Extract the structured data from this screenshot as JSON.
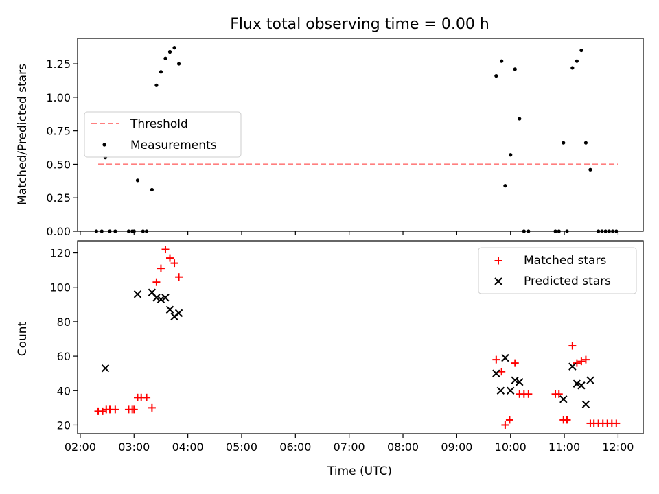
{
  "figure": {
    "title": "Flux total observing time = 0.00 h",
    "xlabel": "Time (UTC)"
  },
  "chart_data": [
    {
      "type": "scatter",
      "panel": "top",
      "title": "Flux total observing time = 0.00 h",
      "ylabel": "Matched/Predicted stars",
      "xlim": [
        "01:57",
        "12:28"
      ],
      "ylim": [
        0,
        1.44
      ],
      "yticks": [
        0.0,
        0.25,
        0.5,
        0.75,
        1.0,
        1.25
      ],
      "ytick_labels": [
        "0.00",
        "0.25",
        "0.50",
        "0.75",
        "1.00",
        "1.25"
      ],
      "grid": false,
      "legend_position": "center-left",
      "threshold": {
        "name": "Threshold",
        "y": 0.5,
        "x_start": "02:20",
        "x_end": "12:00",
        "color": "#ff7f7f",
        "style": "dashed"
      },
      "series": [
        {
          "name": "Measurements",
          "color": "#000000",
          "marker": "dot",
          "points": [
            [
              "02:18",
              0.0
            ],
            [
              "02:24",
              0.0
            ],
            [
              "02:33",
              0.0
            ],
            [
              "02:39",
              0.0
            ],
            [
              "02:28",
              0.55
            ],
            [
              "02:54",
              0.0
            ],
            [
              "02:58",
              0.0
            ],
            [
              "03:00",
              0.0
            ],
            [
              "03:04",
              0.38
            ],
            [
              "03:10",
              0.0
            ],
            [
              "03:14",
              0.0
            ],
            [
              "03:20",
              0.31
            ],
            [
              "03:25",
              1.09
            ],
            [
              "03:30",
              1.19
            ],
            [
              "03:35",
              1.29
            ],
            [
              "03:40",
              1.34
            ],
            [
              "03:45",
              1.37
            ],
            [
              "03:50",
              1.25
            ],
            [
              "09:44",
              1.16
            ],
            [
              "09:50",
              1.27
            ],
            [
              "09:54",
              0.34
            ],
            [
              "10:00",
              0.57
            ],
            [
              "10:05",
              1.21
            ],
            [
              "10:10",
              0.84
            ],
            [
              "10:15",
              0.0
            ],
            [
              "10:20",
              0.0
            ],
            [
              "10:50",
              0.0
            ],
            [
              "10:54",
              0.0
            ],
            [
              "10:59",
              0.66
            ],
            [
              "11:03",
              0.0
            ],
            [
              "11:09",
              1.22
            ],
            [
              "11:14",
              1.27
            ],
            [
              "11:19",
              1.35
            ],
            [
              "11:24",
              0.66
            ],
            [
              "11:29",
              0.46
            ],
            [
              "11:38",
              0.0
            ],
            [
              "11:42",
              0.0
            ],
            [
              "11:46",
              0.0
            ],
            [
              "11:50",
              0.0
            ],
            [
              "11:54",
              0.0
            ],
            [
              "11:58",
              0.0
            ]
          ]
        }
      ]
    },
    {
      "type": "scatter",
      "panel": "bottom",
      "xlabel": "Time (UTC)",
      "ylabel": "Count",
      "xlim": [
        "01:57",
        "12:28"
      ],
      "ylim": [
        15,
        127
      ],
      "yticks": [
        20,
        40,
        60,
        80,
        100,
        120
      ],
      "xticks": [
        "02:00",
        "03:00",
        "04:00",
        "05:00",
        "06:00",
        "07:00",
        "08:00",
        "09:00",
        "10:00",
        "11:00",
        "12:00"
      ],
      "grid": false,
      "legend_position": "top-right",
      "series": [
        {
          "name": "Matched stars",
          "color": "#ff0000",
          "marker": "plus",
          "points": [
            [
              "02:20",
              28
            ],
            [
              "02:25",
              28
            ],
            [
              "02:29",
              29
            ],
            [
              "02:33",
              29
            ],
            [
              "02:39",
              29
            ],
            [
              "02:54",
              29
            ],
            [
              "02:58",
              29
            ],
            [
              "03:00",
              29
            ],
            [
              "03:04",
              36
            ],
            [
              "03:08",
              36
            ],
            [
              "03:14",
              36
            ],
            [
              "03:20",
              30
            ],
            [
              "03:25",
              103
            ],
            [
              "03:30",
              111
            ],
            [
              "03:35",
              122
            ],
            [
              "03:40",
              117
            ],
            [
              "03:45",
              114
            ],
            [
              "03:50",
              106
            ],
            [
              "09:44",
              58
            ],
            [
              "09:50",
              51
            ],
            [
              "09:54",
              20
            ],
            [
              "09:59",
              23
            ],
            [
              "10:05",
              56
            ],
            [
              "10:10",
              38
            ],
            [
              "10:15",
              38
            ],
            [
              "10:20",
              38
            ],
            [
              "10:50",
              38
            ],
            [
              "10:54",
              38
            ],
            [
              "10:59",
              23
            ],
            [
              "11:03",
              23
            ],
            [
              "11:09",
              66
            ],
            [
              "11:14",
              56
            ],
            [
              "11:19",
              57
            ],
            [
              "11:24",
              58
            ],
            [
              "11:29",
              21
            ],
            [
              "11:33",
              21
            ],
            [
              "11:38",
              21
            ],
            [
              "11:43",
              21
            ],
            [
              "11:48",
              21
            ],
            [
              "11:53",
              21
            ],
            [
              "11:58",
              21
            ]
          ]
        },
        {
          "name": "Predicted stars",
          "color": "#000000",
          "marker": "x",
          "points": [
            [
              "02:28",
              53
            ],
            [
              "03:04",
              96
            ],
            [
              "03:20",
              97
            ],
            [
              "03:25",
              94
            ],
            [
              "03:30",
              93
            ],
            [
              "03:35",
              94
            ],
            [
              "03:40",
              87
            ],
            [
              "03:45",
              83
            ],
            [
              "03:50",
              85
            ],
            [
              "09:44",
              50
            ],
            [
              "09:49",
              40
            ],
            [
              "09:54",
              59
            ],
            [
              "10:00",
              40
            ],
            [
              "10:05",
              46
            ],
            [
              "10:10",
              45
            ],
            [
              "10:59",
              35
            ],
            [
              "11:09",
              54
            ],
            [
              "11:14",
              44
            ],
            [
              "11:19",
              43
            ],
            [
              "11:24",
              32
            ],
            [
              "11:29",
              46
            ]
          ]
        }
      ]
    }
  ]
}
